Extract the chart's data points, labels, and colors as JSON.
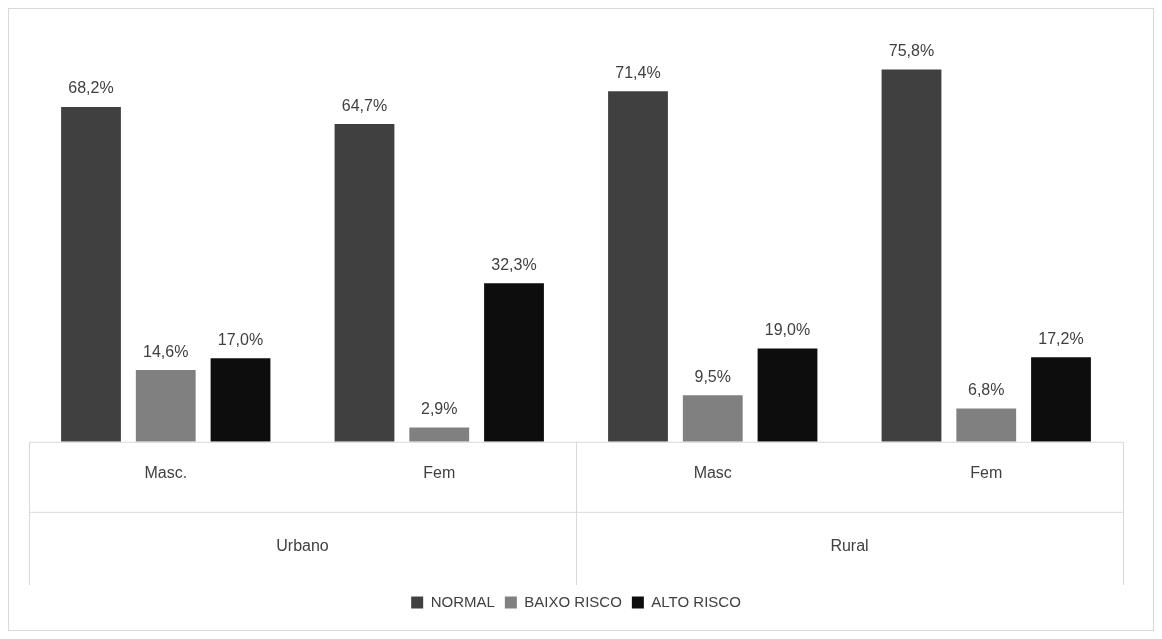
{
  "chart_data": {
    "type": "bar",
    "categories": [
      "Masc.",
      "Fem",
      "Masc",
      "Fem"
    ],
    "series": [
      {
        "name": "NORMAL",
        "color": "#404040",
        "values": [
          68.2,
          64.7,
          71.4,
          75.8
        ],
        "value_labels": [
          "68,2%",
          "64,7%",
          "71,4%",
          "75,8%"
        ]
      },
      {
        "name": "BAIXO RISCO",
        "color": "#808080",
        "values": [
          14.6,
          2.9,
          9.5,
          6.8
        ],
        "value_labels": [
          "14,6%",
          "2,9%",
          "9,5%",
          "6,8%"
        ]
      },
      {
        "name": "ALTO RISCO",
        "color": "#0d0d0d",
        "values": [
          17.0,
          32.3,
          19.0,
          17.2
        ],
        "value_labels": [
          "17,0%",
          "32,3%",
          "19,0%",
          "17,2%"
        ]
      }
    ],
    "annotations": [
      "Urbano",
      "Rural"
    ],
    "legend": "bottom",
    "grid": false
  }
}
